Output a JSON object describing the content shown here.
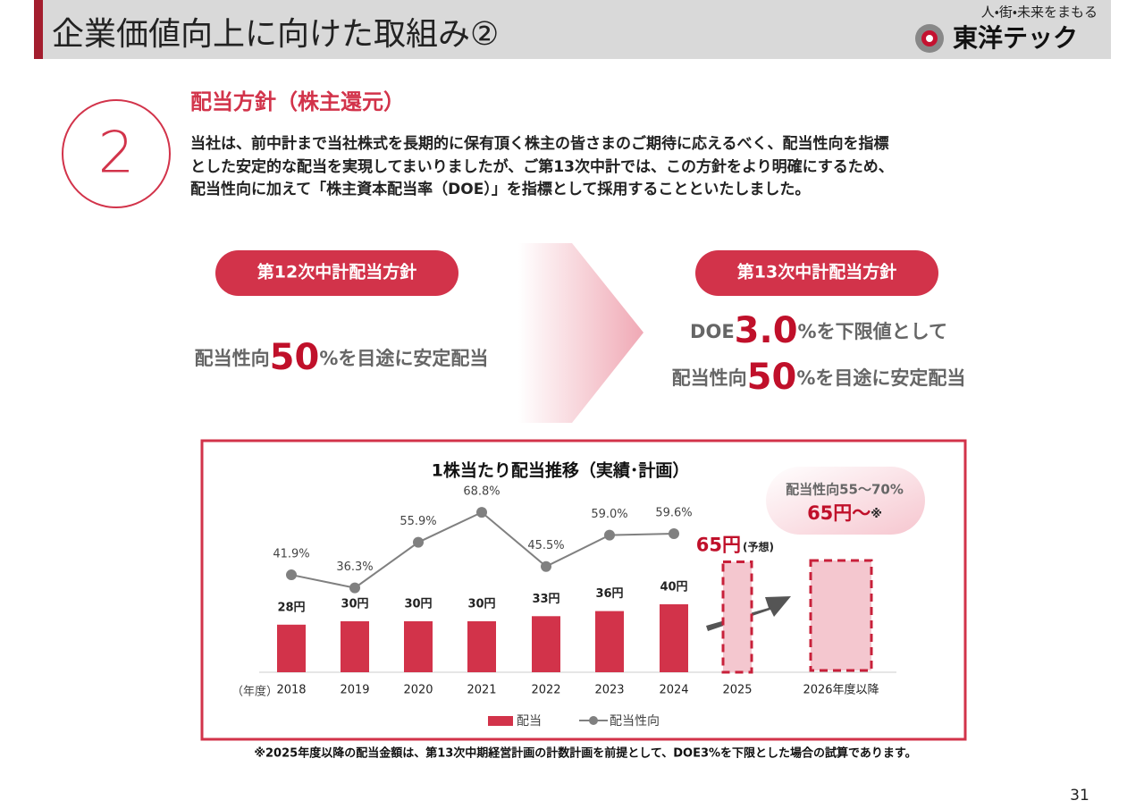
{
  "header": {
    "title": "企業価値向上に向けた取組み②",
    "tagline": "人・街・未来をまもる",
    "logo": "東洋テック"
  },
  "section": {
    "number": "2",
    "heading": "配当方針（株主還元）",
    "body": [
      "当社は、前中計まで当社株式を長期的に保有頂く株主の皆さまのご期待に応えるべく、配当性向を指標",
      "とした安定的な配当を実現してまいりましたが、ご第13次中計では、この方針をより明確にするため、",
      "配当性向に加えて「株主資本配当率（DOE）」を指標として採用することといたしました。"
    ]
  },
  "policy_12": {
    "label": "第12次中計配当方針",
    "prefix": "配当性向",
    "big": "50",
    "suffix": "%を目途に安定配当"
  },
  "policy_13": {
    "label": "第13次中計配当方針",
    "line1": {
      "prefix": "DOE",
      "big": "3.0",
      "suffix": "%を下限値として"
    },
    "line2": {
      "prefix": "配当性向",
      "big": "50",
      "suffix": "%を目途に安定配当"
    }
  },
  "chart_data": {
    "type": "bar_line",
    "title": "1株当たり配当推移（実績･計画）",
    "x_unit": "（年度）",
    "categories": [
      "2018",
      "2019",
      "2020",
      "2021",
      "2022",
      "2023",
      "2024",
      "2025",
      "2026年度以降"
    ],
    "series": [
      {
        "name": "配当",
        "type": "bar",
        "color": "#d2334a",
        "values": [
          28,
          30,
          30,
          30,
          33,
          36,
          40,
          65,
          null
        ],
        "value_labels": [
          "28円",
          "30円",
          "30円",
          "30円",
          "33円",
          "36円",
          "40円",
          "65円",
          null
        ]
      },
      {
        "name": "配当性向",
        "type": "line",
        "color": "#808080",
        "values": [
          41.9,
          36.3,
          55.9,
          68.8,
          45.5,
          59.0,
          59.6,
          null,
          null
        ],
        "value_labels": [
          "41.9%",
          "36.3%",
          "55.9%",
          "68.8%",
          "45.5%",
          "59.0%",
          "59.6%",
          null,
          null
        ]
      }
    ],
    "forecast_note": "(予想)",
    "callout": {
      "line1": "配当性向55～70%",
      "line2": "65円～",
      "mark": "※"
    }
  },
  "footnote": "※2025年度以降の配当金額は、第13次中期経営計画の計数計画を前提として、DOE3%を下限とした場合の試算であります。",
  "page_number": "31"
}
